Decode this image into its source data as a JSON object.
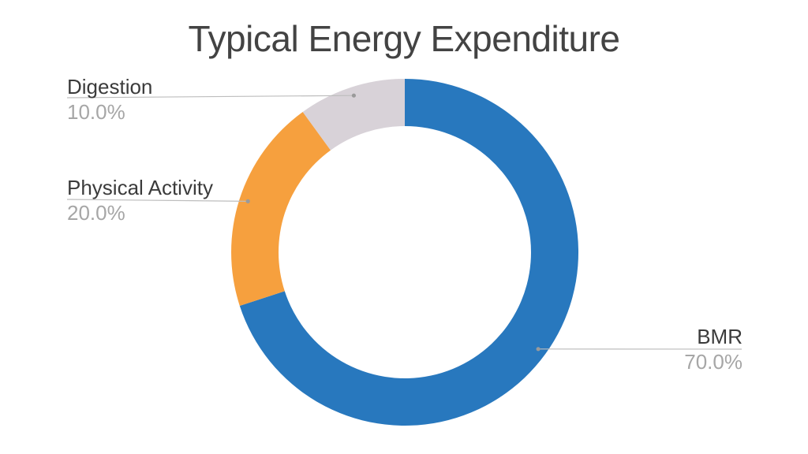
{
  "title": "Typical Energy Expenditure",
  "chart_data": {
    "type": "pie",
    "subtype": "donut",
    "title": "Typical Energy Expenditure",
    "start_angle_deg": 0,
    "direction": "clockwise",
    "legend_position": "none",
    "background_color": "#ffffff",
    "title_color": "#434343",
    "label_color": "#3b3b3b",
    "percent_color": "#a6a6a6",
    "leader_line_color": "#bdbdbd",
    "leader_dot_color": "#9a9a9a",
    "slices": [
      {
        "label": "BMR",
        "value": 70.0,
        "pct_label": "70.0%",
        "color": "#2878BE"
      },
      {
        "label": "Physical Activity",
        "value": 20.0,
        "pct_label": "20.0%",
        "color": "#F6A03E"
      },
      {
        "label": "Digestion",
        "value": 10.0,
        "pct_label": "10.0%",
        "color": "#D8D2D8"
      }
    ]
  }
}
